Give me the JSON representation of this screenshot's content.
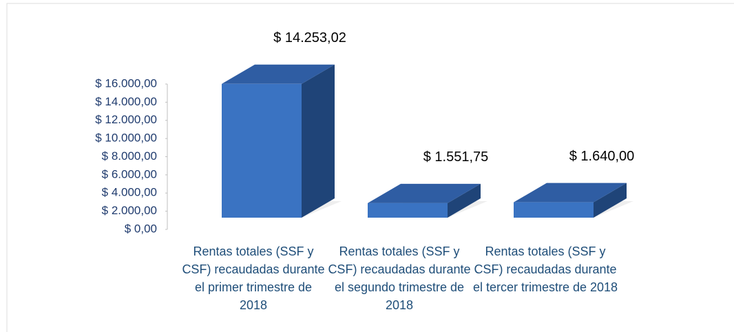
{
  "chart_data": {
    "type": "bar3d",
    "categories": [
      "Rentas totales (SSF y CSF) recaudadas durante el primer trimestre de  2018",
      "Rentas totales (SSF y CSF) recaudadas durante el segundo trimestre de  2018",
      "Rentas totales (SSF y CSF) recaudadas durante el tercer trimestre de  2018"
    ],
    "values": [
      14253.02,
      1551.75,
      1640.0
    ],
    "value_labels": [
      "$ 14.253,02",
      "$ 1.551,75",
      "$ 1.640,00"
    ],
    "color": "#3a73c2",
    "ylim": [
      0,
      16000
    ],
    "yticks": [
      {
        "value": 0,
        "label": "$ 0,00"
      },
      {
        "value": 2000,
        "label": "$ 2.000,00"
      },
      {
        "value": 4000,
        "label": "$ 4.000,00"
      },
      {
        "value": 6000,
        "label": "$ 6.000,00"
      },
      {
        "value": 8000,
        "label": "$ 8.000,00"
      },
      {
        "value": 10000,
        "label": "$ 10.000,00"
      },
      {
        "value": 12000,
        "label": "$ 12.000,00"
      },
      {
        "value": 14000,
        "label": "$ 14.000,00"
      },
      {
        "value": 16000,
        "label": "$ 16.000,00"
      }
    ],
    "grid": false
  }
}
